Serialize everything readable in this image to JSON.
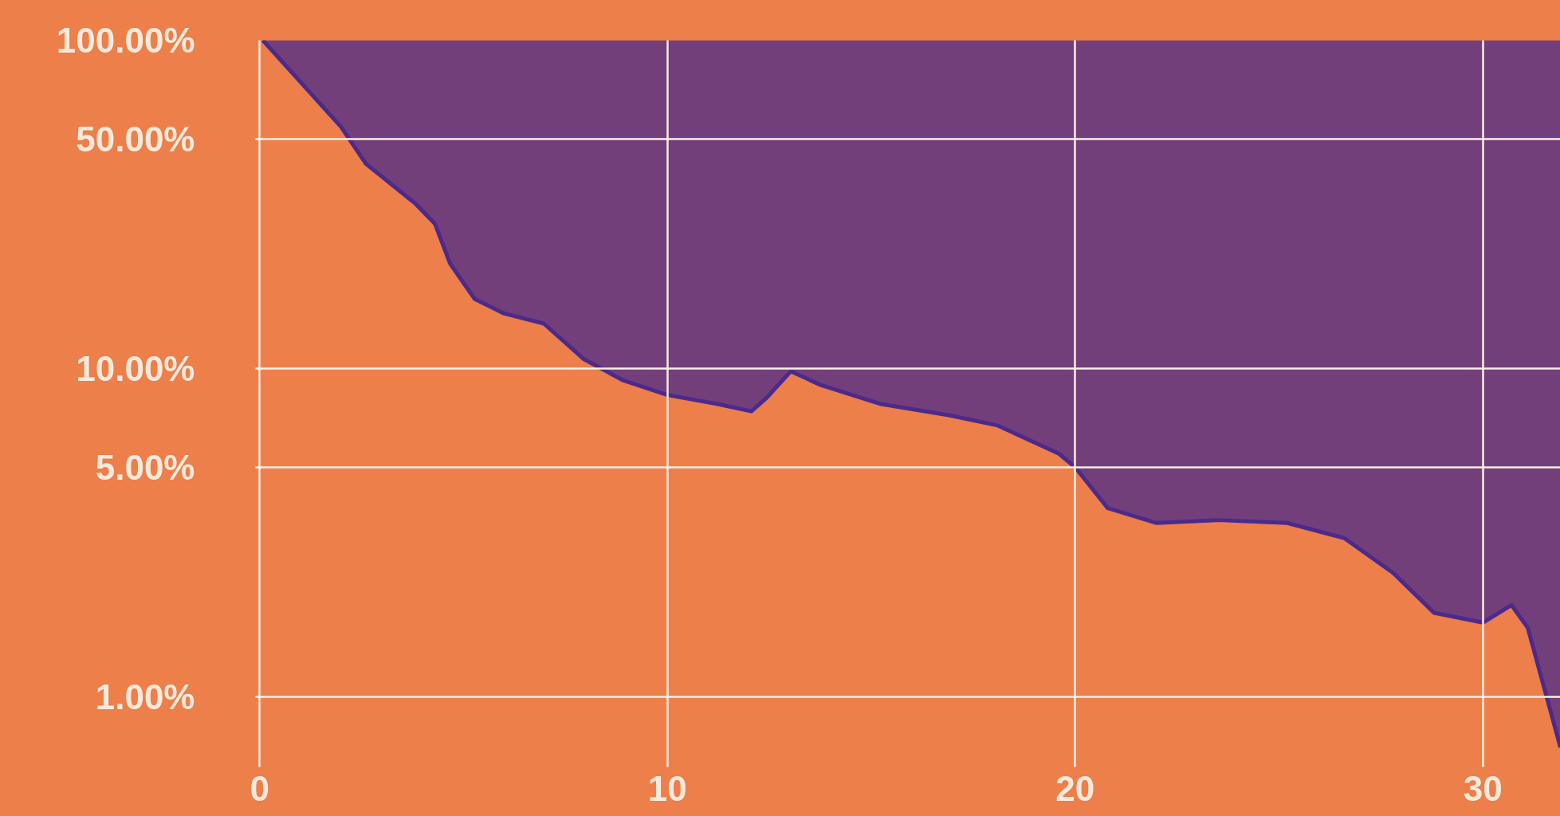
{
  "chart_data": {
    "type": "line",
    "x": [
      0.08,
      2.0,
      2.61,
      3.82,
      4.3,
      4.67,
      5.27,
      6.0,
      6.97,
      7.94,
      8.91,
      10,
      11.21,
      12.06,
      12.42,
      13.03,
      13.76,
      15.21,
      16.9,
      18.1,
      19.6,
      20,
      20.8,
      22.0,
      23.5,
      25.2,
      26.6,
      27.8,
      28.8,
      30,
      30.7,
      31.1,
      31.9
    ],
    "series": [
      {
        "color": "#4b2a8c",
        "values": [
          100,
          54.4,
          42,
          31.8,
          27.6,
          20.9,
          16.3,
          14.7,
          13.7,
          10.7,
          9.2,
          8.3,
          7.8,
          7.4,
          8.1,
          9.8,
          8.9,
          7.8,
          7.2,
          6.7,
          5.5,
          5.0,
          3.75,
          3.38,
          3.45,
          3.38,
          3.04,
          2.38,
          1.8,
          1.68,
          1.9,
          1.62,
          0.7
        ],
        "lower": [
          100,
          54.4,
          42,
          31.8,
          27.6,
          20.9,
          16.3,
          14.7,
          13.7,
          10.7,
          9.2,
          8.3,
          7.8,
          7.4,
          8.1,
          9.8,
          8.9,
          7.8,
          7.2,
          6.7,
          5.5,
          5.0,
          3.75,
          3.38,
          3.45,
          3.38,
          3.04,
          2.38,
          1.8,
          1.68,
          1.9,
          1.62,
          0.7
        ],
        "upper": [
          100,
          100,
          100,
          100,
          100,
          100,
          100,
          100,
          100,
          100,
          100,
          100,
          100,
          100,
          100,
          100,
          100,
          100,
          100,
          100,
          100,
          100,
          100,
          100,
          100,
          100,
          100,
          100,
          100,
          100,
          100,
          100,
          100
        ]
      }
    ],
    "log": "y",
    "xlim": [
      -0.1,
      31.9
    ],
    "ylim": [
      0.61,
      100
    ],
    "xticks": [
      0,
      10,
      20,
      30
    ],
    "yticks": [
      {
        "value": 1,
        "label": "1.00%"
      },
      {
        "value": 5,
        "label": "5.00%"
      },
      {
        "value": 10,
        "label": "10.00%"
      },
      {
        "value": 50,
        "label": "50.00%"
      },
      {
        "value": 100,
        "label": "100.00%"
      }
    ],
    "grid": true
  }
}
